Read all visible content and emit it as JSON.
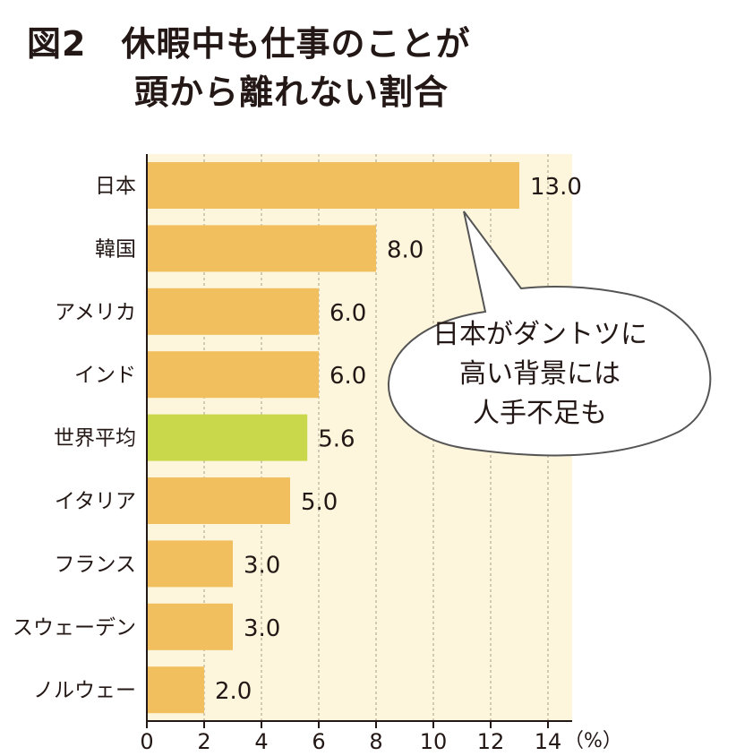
{
  "title": {
    "line1": "図2　休暇中も仕事のことが",
    "line2": "頭から離れない割合"
  },
  "colors": {
    "bar": "#f2bf5e",
    "highlight": "#c8d84a",
    "plot_bg": "#fdf6dc",
    "grid": "#b5ad99",
    "axis": "#231815"
  },
  "chart_data": {
    "type": "bar",
    "orientation": "horizontal",
    "categories": [
      "日本",
      "韓国",
      "アメリカ",
      "インド",
      "世界平均",
      "イタリア",
      "フランス",
      "スウェーデン",
      "ノルウェー"
    ],
    "values": [
      13.0,
      8.0,
      6.0,
      6.0,
      5.6,
      5.0,
      3.0,
      3.0,
      2.0
    ],
    "value_labels": [
      "13.0",
      "8.0",
      "6.0",
      "6.0",
      "5.6",
      "5.0",
      "3.0",
      "3.0",
      "2.0"
    ],
    "highlight_category": "世界平均",
    "xlim": [
      0,
      15
    ],
    "x_ticks": [
      0,
      2,
      4,
      6,
      8,
      10,
      12,
      14
    ],
    "x_unit": "（%）",
    "grid": true,
    "annotation": {
      "lines": [
        "日本がダントツに",
        "高い背景には",
        "人手不足も"
      ],
      "points_to": "日本"
    }
  }
}
